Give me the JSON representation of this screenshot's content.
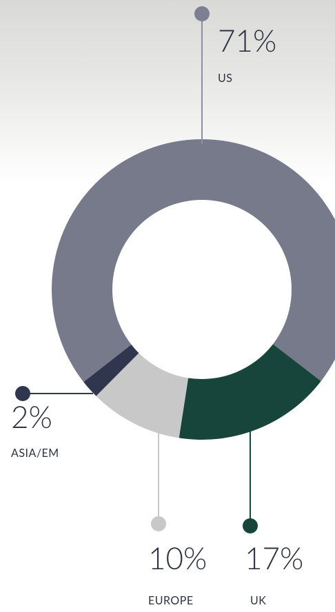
{
  "chart_data": {
    "type": "donut",
    "categories": [
      "US",
      "UK",
      "EUROPE",
      "ASIA/EM"
    ],
    "values": [
      71,
      17,
      10,
      2
    ],
    "value_labels": [
      "71%",
      "17%",
      "10%",
      "2%"
    ],
    "colors": [
      "#767a8b",
      "#17443b",
      "#c8c8c8",
      "#30364d"
    ]
  }
}
